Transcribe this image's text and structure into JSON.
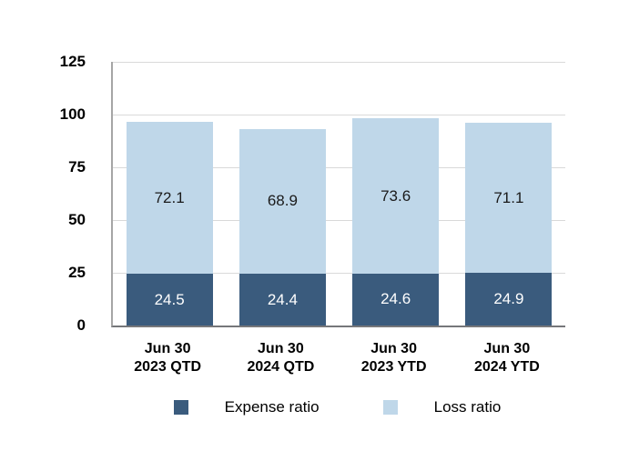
{
  "chart_data": {
    "type": "bar",
    "stacked": true,
    "title": "",
    "categories": [
      [
        "Jun 30",
        "2023 QTD"
      ],
      [
        "Jun 30",
        "2024 QTD"
      ],
      [
        "Jun 30",
        "2023 YTD"
      ],
      [
        "Jun 30",
        "2024 YTD"
      ]
    ],
    "series": [
      {
        "name": "Expense ratio",
        "color": "#3A5B7D",
        "label_color": "#FFFFFF",
        "values": [
          24.5,
          24.4,
          24.6,
          24.9
        ]
      },
      {
        "name": "Loss ratio",
        "color": "#BFD7E9",
        "label_color": "#1A1A1A",
        "values": [
          72.1,
          68.9,
          73.6,
          71.1
        ]
      }
    ],
    "totals": [
      96.6,
      93.3,
      98.2,
      96.0
    ],
    "y_ticks": [
      0,
      25,
      50,
      75,
      100,
      125
    ],
    "ylim": [
      0,
      125
    ],
    "xlabel": "",
    "ylabel": "",
    "grid": "horizontal",
    "legend_position": "bottom",
    "value_label_decimals": 1
  }
}
